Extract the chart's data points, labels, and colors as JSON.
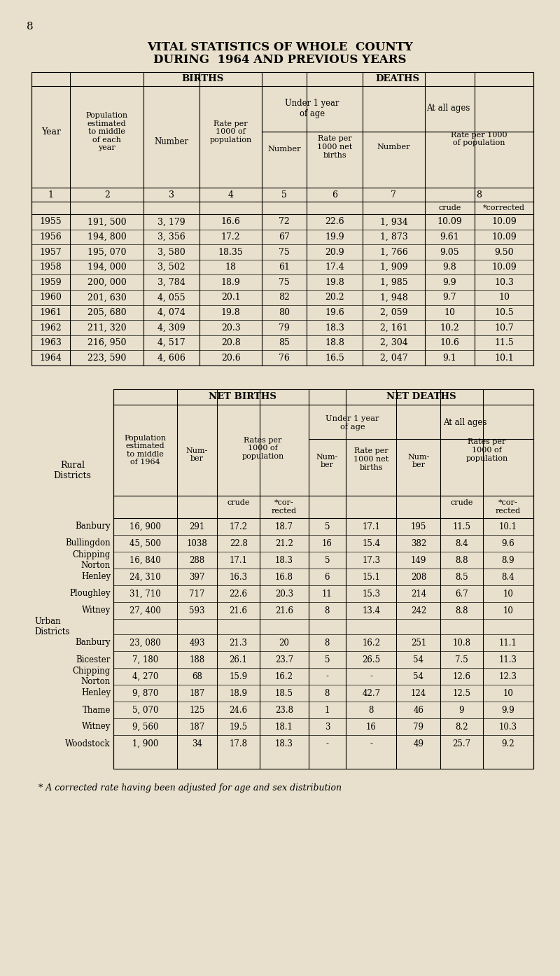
{
  "page_number": "8",
  "title_line1": "VITAL STATISTICS OF WHOLE  COUNTY",
  "title_line2": "DURING  1964 AND PREVIOUS YEARS",
  "footnote": "* A corrected rate having been adjusted for age and sex distribution",
  "bg_color": "#e8e0cc",
  "table1": {
    "years": [
      "1955",
      "1956",
      "1957",
      "1958",
      "1959",
      "1960",
      "1961",
      "1962",
      "1963",
      "1964"
    ],
    "population": [
      "191, 500",
      "194, 800",
      "195, 070",
      "194, 000",
      "200, 000",
      "201, 630",
      "205, 680",
      "211, 320",
      "216, 950",
      "223, 590"
    ],
    "births_number": [
      "3, 179",
      "3, 356",
      "3, 580",
      "3, 502",
      "3, 784",
      "4, 055",
      "4, 074",
      "4, 309",
      "4, 517",
      "4, 606"
    ],
    "births_rate": [
      "16.6",
      "17.2",
      "18.35",
      "18",
      "18.9",
      "20.1",
      "19.8",
      "20.3",
      "20.8",
      "20.6"
    ],
    "deaths_under1_number": [
      "72",
      "67",
      "75",
      "61",
      "75",
      "82",
      "80",
      "79",
      "85",
      "76"
    ],
    "deaths_under1_rate": [
      "22.6",
      "19.9",
      "20.9",
      "17.4",
      "19.8",
      "20.2",
      "19.6",
      "18.3",
      "18.8",
      "16.5"
    ],
    "deaths_all_number": [
      "1, 934",
      "1, 873",
      "1, 766",
      "1, 909",
      "1, 985",
      "1, 948",
      "2, 059",
      "2, 161",
      "2, 304",
      "2, 047"
    ],
    "deaths_crude": [
      "10.09",
      "9.61",
      "9.05",
      "9.8",
      "9.9",
      "9.7",
      "10",
      "10.2",
      "10.6",
      "9.1"
    ],
    "deaths_corrected": [
      "10.09",
      "10.09",
      "9.50",
      "10.09",
      "10.3",
      "10",
      "10.5",
      "10.7",
      "11.5",
      "10.1"
    ]
  },
  "table2": {
    "districts": [
      "Banbury",
      "Bullingdon",
      "Chipping\nNorton",
      "Henley",
      "Ploughley",
      "Witney"
    ],
    "population": [
      "16, 900",
      "45, 500",
      "16, 840",
      "24, 310",
      "31, 710",
      "27, 400"
    ],
    "births_number": [
      "291",
      "1038",
      "288",
      "397",
      "717",
      "593"
    ],
    "births_crude": [
      "17.2",
      "22.8",
      "17.1",
      "16.3",
      "22.6",
      "21.6"
    ],
    "births_corrected": [
      "18.7",
      "21.2",
      "18.3",
      "16.8",
      "20.3",
      "21.6"
    ],
    "deaths_u1_number": [
      "5",
      "16",
      "5",
      "6",
      "11",
      "8"
    ],
    "deaths_u1_rate": [
      "17.1",
      "15.4",
      "17.3",
      "15.1",
      "15.3",
      "13.4"
    ],
    "deaths_all_number": [
      "195",
      "382",
      "149",
      "208",
      "214",
      "242"
    ],
    "deaths_all_crude": [
      "11.5",
      "8.4",
      "8.8",
      "8.5",
      "6.7",
      "8.8"
    ],
    "deaths_all_corrected": [
      "10.1",
      "9.6",
      "8.9",
      "8.4",
      "10",
      "10"
    ]
  },
  "table3": {
    "districts": [
      "Banbury",
      "Bicester",
      "Chipping\nNorton",
      "Henley",
      "Thame",
      "Witney",
      "Woodstock"
    ],
    "population": [
      "23, 080",
      "7, 180",
      "4, 270",
      "9, 870",
      "5, 070",
      "9, 560",
      "1, 900"
    ],
    "births_number": [
      "493",
      "188",
      "68",
      "187",
      "125",
      "187",
      "34"
    ],
    "births_crude": [
      "21.3",
      "26.1",
      "15.9",
      "18.9",
      "24.6",
      "19.5",
      "17.8"
    ],
    "births_corrected": [
      "20",
      "23.7",
      "16.2",
      "18.5",
      "23.8",
      "18.1",
      "18.3"
    ],
    "deaths_u1_number": [
      "8",
      "5",
      "-",
      "8",
      "1",
      "3",
      "-"
    ],
    "deaths_u1_rate": [
      "16.2",
      "26.5",
      "-",
      "42.7",
      "8",
      "16",
      "-"
    ],
    "deaths_all_number": [
      "251",
      "54",
      "54",
      "124",
      "46",
      "79",
      "49"
    ],
    "deaths_all_crude": [
      "10.8",
      "7.5",
      "12.6",
      "12.5",
      "9",
      "8.2",
      "25.7"
    ],
    "deaths_all_corrected": [
      "11.1",
      "11.3",
      "12.3",
      "10",
      "9.9",
      "10.3",
      "9.2"
    ]
  }
}
